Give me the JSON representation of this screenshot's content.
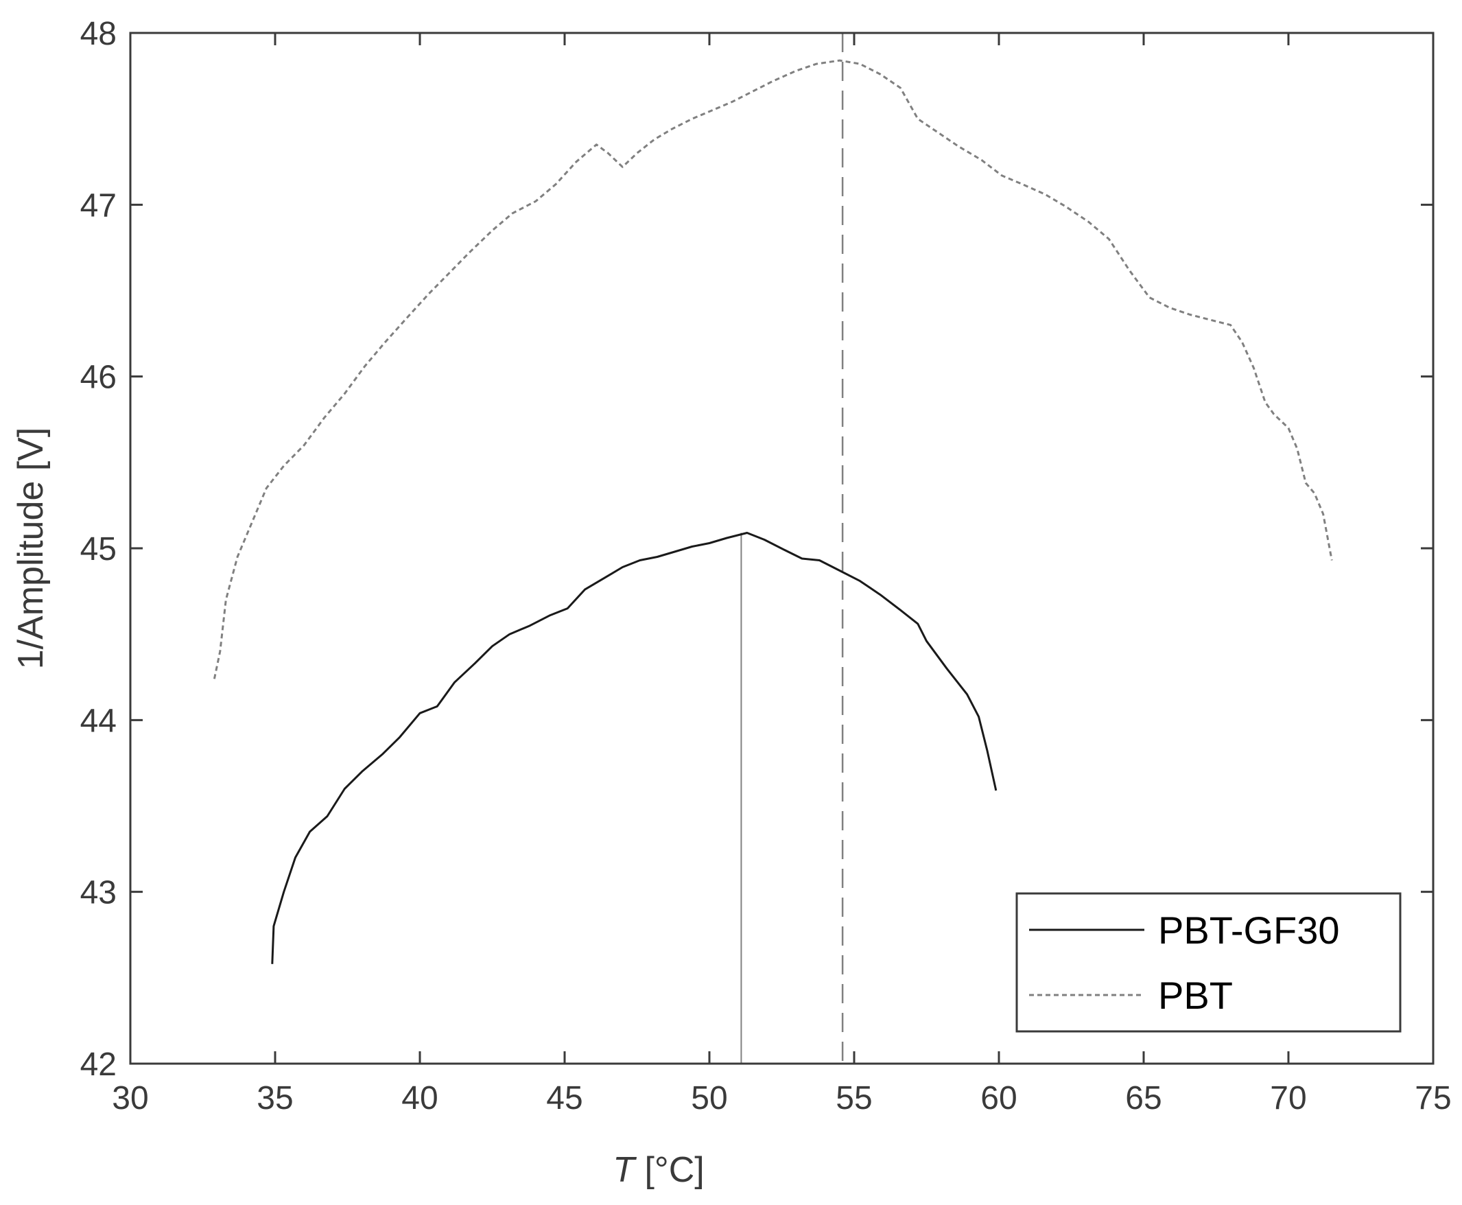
{
  "chart_data": {
    "type": "line",
    "xlabel_italic": "T",
    "xlabel_unit": " [°C]",
    "ylabel": "1/Amplitude [V]",
    "xlim": [
      30,
      75
    ],
    "ylim": [
      42,
      48
    ],
    "xticks": [
      "30",
      "35",
      "40",
      "45",
      "50",
      "55",
      "60",
      "65",
      "70",
      "75"
    ],
    "yticks": [
      "42",
      "43",
      "44",
      "45",
      "46",
      "47",
      "48"
    ],
    "grid": false,
    "legend_position": "bottom-right",
    "series": [
      {
        "name": "PBT-GF30",
        "color": "#1a1a1a",
        "style": "solid",
        "x": [
          34.9,
          34.95,
          35.3,
          35.7,
          36.2,
          36.8,
          37.4,
          38.0,
          38.7,
          39.3,
          40.0,
          40.6,
          41.2,
          41.9,
          42.5,
          43.1,
          43.8,
          44.5,
          45.1,
          45.7,
          46.4,
          47.0,
          47.6,
          48.2,
          48.8,
          49.4,
          50.0,
          50.6,
          51.3,
          51.9,
          52.6,
          53.2,
          53.8,
          54.5,
          55.2,
          55.9,
          56.6,
          57.2,
          57.5,
          58.2,
          58.9,
          59.3,
          59.6,
          59.9
        ],
        "y": [
          42.58,
          42.8,
          43.0,
          43.2,
          43.35,
          43.44,
          43.6,
          43.7,
          43.8,
          43.9,
          44.04,
          44.08,
          44.22,
          44.33,
          44.43,
          44.5,
          44.55,
          44.61,
          44.65,
          44.76,
          44.83,
          44.89,
          44.93,
          44.95,
          44.98,
          45.01,
          45.03,
          45.06,
          45.09,
          45.05,
          44.99,
          44.94,
          44.93,
          44.87,
          44.81,
          44.73,
          44.64,
          44.56,
          44.46,
          44.3,
          44.15,
          44.02,
          43.82,
          43.59
        ]
      },
      {
        "name": "PBT",
        "color": "#808080",
        "style": "dotted",
        "x": [
          32.9,
          33.1,
          33.3,
          33.7,
          34.2,
          34.7,
          35.3,
          36.0,
          36.7,
          37.4,
          38.1,
          38.8,
          39.6,
          40.3,
          41.0,
          41.7,
          42.5,
          43.2,
          44.0,
          44.7,
          45.4,
          46.1,
          46.5,
          47.0,
          47.5,
          48.1,
          48.7,
          49.4,
          50.1,
          50.8,
          51.5,
          52.2,
          53.0,
          53.7,
          54.5,
          55.2,
          55.9,
          56.6,
          57.2,
          57.9,
          58.6,
          59.4,
          60.1,
          60.8,
          61.6,
          62.3,
          63.1,
          63.8,
          64.5,
          65.2,
          65.9,
          66.6,
          67.3,
          68.0,
          68.4,
          68.8,
          69.2,
          69.5,
          70.0,
          70.3,
          70.6,
          70.9,
          71.2,
          71.5
        ],
        "y": [
          44.24,
          44.4,
          44.7,
          44.95,
          45.15,
          45.35,
          45.48,
          45.6,
          45.76,
          45.9,
          46.06,
          46.2,
          46.35,
          46.48,
          46.6,
          46.72,
          46.85,
          46.95,
          47.02,
          47.12,
          47.25,
          47.35,
          47.3,
          47.22,
          47.3,
          47.38,
          47.44,
          47.5,
          47.55,
          47.6,
          47.66,
          47.72,
          47.78,
          47.82,
          47.84,
          47.82,
          47.76,
          47.68,
          47.5,
          47.42,
          47.34,
          47.26,
          47.17,
          47.12,
          47.06,
          46.99,
          46.9,
          46.8,
          46.62,
          46.46,
          46.4,
          46.36,
          46.33,
          46.3,
          46.2,
          46.05,
          45.85,
          45.78,
          45.7,
          45.58,
          45.38,
          45.32,
          45.2,
          44.93
        ]
      }
    ],
    "reference_lines": [
      {
        "x": 51.1,
        "style": "solid",
        "color": "#808080",
        "ymax": 45.09
      },
      {
        "x": 54.6,
        "style": "dashed",
        "color": "#808080",
        "ymax": 47.84
      }
    ]
  }
}
